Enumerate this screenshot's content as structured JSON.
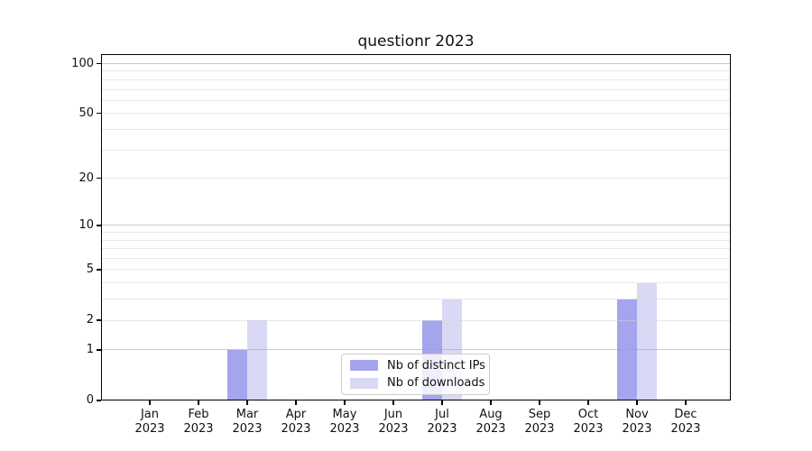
{
  "figure": {
    "title": "questionr 2023"
  },
  "chart_data": {
    "type": "bar",
    "title": "questionr 2023",
    "scale_y": "log1p",
    "grid": "horizontal",
    "legend_position": "lower center inside plot",
    "categories": [
      "Jan",
      "Feb",
      "Mar",
      "Apr",
      "May",
      "Jun",
      "Jul",
      "Aug",
      "Sep",
      "Oct",
      "Nov",
      "Dec"
    ],
    "category_year": "2023",
    "series": [
      {
        "name": "Nb of distinct IPs",
        "color": "#a5a5ed",
        "values": [
          0,
          0,
          1,
          0,
          0,
          0,
          2,
          0,
          0,
          0,
          3,
          0
        ]
      },
      {
        "name": "Nb of downloads",
        "color": "#d9d9f6",
        "values": [
          0,
          0,
          2,
          0,
          0,
          0,
          3,
          0,
          0,
          0,
          4,
          0
        ]
      }
    ],
    "y_axis": {
      "tick_values": [
        100,
        50,
        20,
        10,
        5,
        2,
        1,
        0
      ],
      "tick_labels": [
        "100",
        "50",
        "20",
        "10",
        "5",
        "2",
        "1",
        "0"
      ],
      "ylim": [
        0,
        114
      ],
      "major_gridlines": [
        1,
        10,
        100
      ],
      "minor_gridlines": [
        2,
        3,
        4,
        5,
        6,
        7,
        8,
        9,
        20,
        30,
        40,
        50,
        60,
        70,
        80,
        90
      ]
    },
    "legend_entries": [
      {
        "label": "Nb of distinct IPs",
        "color": "#a5a5ed"
      },
      {
        "label": "Nb of downloads",
        "color": "#d9d9f6"
      }
    ]
  }
}
